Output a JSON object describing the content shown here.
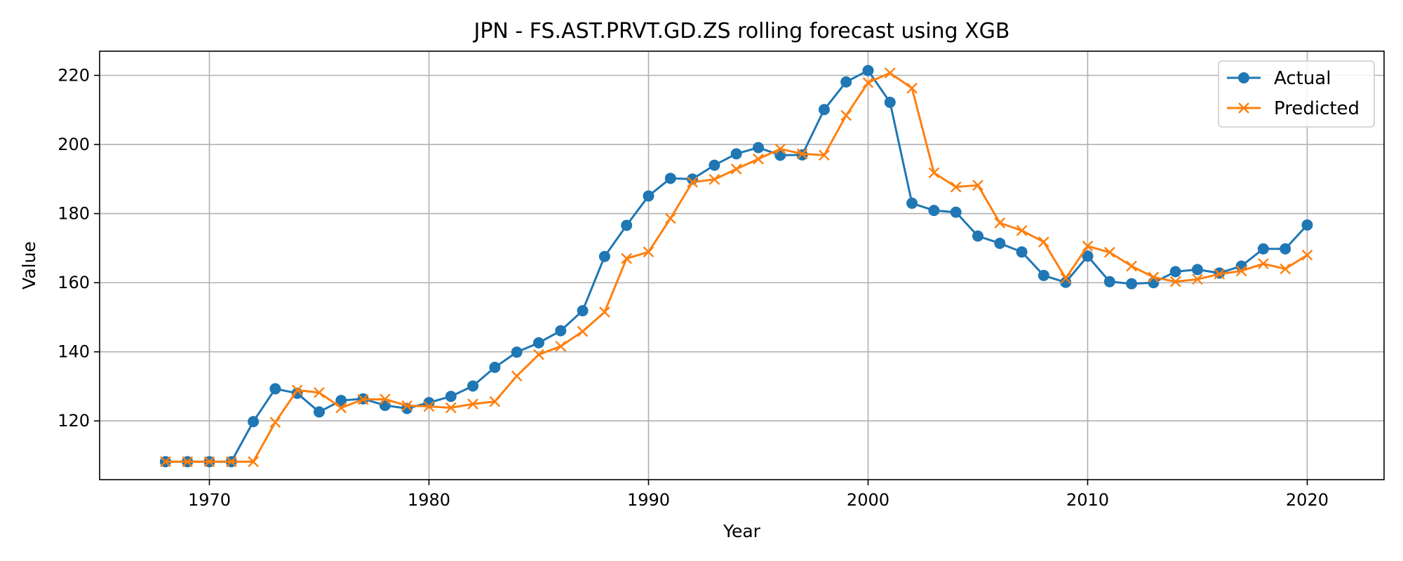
{
  "chart_data": {
    "type": "line",
    "title": "JPN - FS.AST.PRVT.GD.ZS rolling forecast using XGB",
    "xlabel": "Year",
    "ylabel": "Value",
    "xlim": [
      1965,
      2023.5
    ],
    "ylim": [
      103,
      227
    ],
    "xticks": [
      1970,
      1980,
      1990,
      2000,
      2010,
      2020
    ],
    "yticks": [
      120,
      140,
      160,
      180,
      200,
      220
    ],
    "grid": true,
    "legend_position": "top-right",
    "x": [
      1968,
      1969,
      1970,
      1971,
      1972,
      1973,
      1974,
      1975,
      1976,
      1977,
      1978,
      1979,
      1980,
      1981,
      1982,
      1983,
      1984,
      1985,
      1986,
      1987,
      1988,
      1989,
      1990,
      1991,
      1992,
      1993,
      1994,
      1995,
      1996,
      1997,
      1998,
      1999,
      2000,
      2001,
      2002,
      2003,
      2004,
      2005,
      2006,
      2007,
      2008,
      2009,
      2010,
      2011,
      2012,
      2013,
      2014,
      2015,
      2016,
      2017,
      2018,
      2019,
      2020
    ],
    "series": [
      {
        "name": "Actual",
        "color": "#1f77b4",
        "marker": "circle",
        "values": [
          108.2,
          108.2,
          108.2,
          108.2,
          119.8,
          129.3,
          128.0,
          122.6,
          125.9,
          126.4,
          124.5,
          123.6,
          125.3,
          127.1,
          130.1,
          135.5,
          139.9,
          142.6,
          146.1,
          151.9,
          167.6,
          176.6,
          185.1,
          190.2,
          190.0,
          194.0,
          197.3,
          199.1,
          196.9,
          197.0,
          210.1,
          218.1,
          221.4,
          212.2,
          183.0,
          180.9,
          180.4,
          173.5,
          171.4,
          168.9,
          162.1,
          160.1,
          167.7,
          160.3,
          159.7,
          160.0,
          163.2,
          163.8,
          162.8,
          164.8,
          169.8,
          169.8,
          176.7
        ]
      },
      {
        "name": "Predicted",
        "color": "#ff7f0e",
        "marker": "x",
        "values": [
          108.2,
          108.2,
          108.2,
          108.2,
          108.2,
          119.6,
          128.9,
          128.2,
          123.8,
          126.2,
          126.3,
          124.4,
          124.2,
          123.8,
          124.9,
          125.6,
          133.0,
          139.2,
          141.6,
          145.9,
          151.5,
          167.0,
          168.9,
          178.6,
          189.1,
          189.9,
          192.9,
          195.8,
          198.7,
          197.3,
          196.9,
          208.4,
          217.9,
          220.7,
          216.3,
          191.8,
          187.7,
          188.2,
          177.3,
          175.1,
          171.8,
          161.3,
          170.6,
          168.8,
          164.8,
          161.6,
          160.3,
          161.0,
          162.5,
          163.4,
          165.5,
          164.0,
          168.0
        ]
      }
    ]
  }
}
